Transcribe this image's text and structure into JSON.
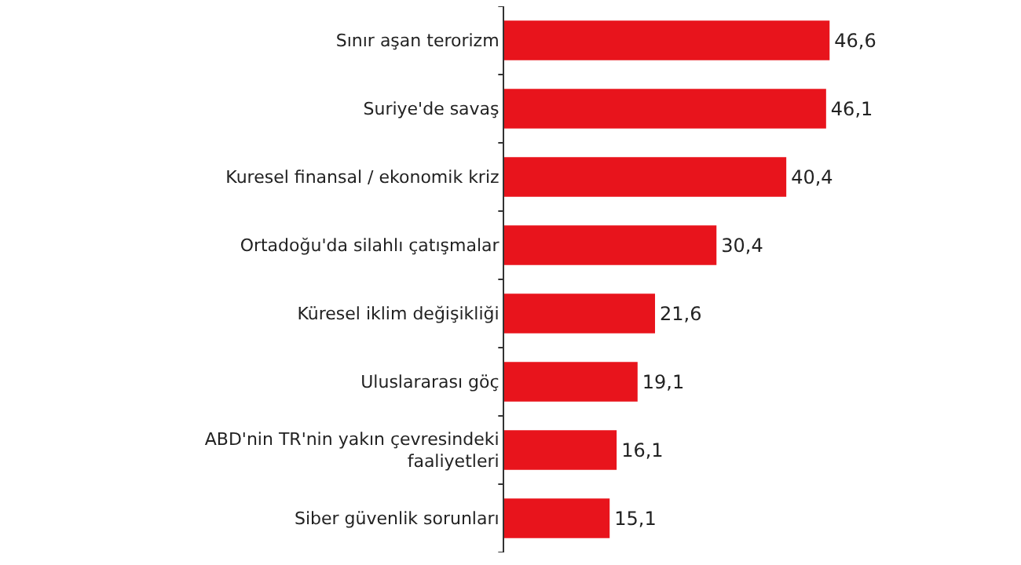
{
  "chart_data": {
    "type": "bar",
    "orientation": "horizontal",
    "categories": [
      "Sınır aşan terorizm",
      "Suriye'de savaş",
      "Kuresel finansal / ekonomik kriz",
      "Ortadoğu'da silahlı çatışmalar",
      "Küresel iklim değişikliği",
      "Uluslararası göç",
      "ABD'nin TR'nin yakın çevresindeki faaliyetleri",
      "Siber güvenlik sorunları"
    ],
    "values": [
      46.6,
      46.1,
      40.4,
      30.4,
      21.6,
      19.1,
      16.1,
      15.1
    ],
    "value_labels": [
      "46,6",
      "46,1",
      "40,4",
      "30,4",
      "21,6",
      "19,1",
      "16,1",
      "15,1"
    ],
    "color": "#e8141c"
  }
}
